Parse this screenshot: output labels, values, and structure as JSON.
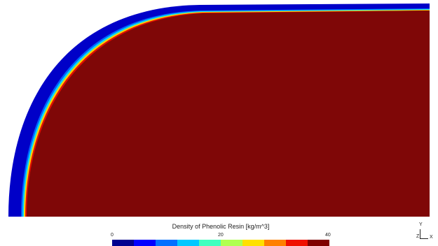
{
  "legend": {
    "title": "Density of Phenolic Resin [kg/m^3]",
    "ticks": [
      {
        "label": "0",
        "value": 0
      },
      {
        "label": "20",
        "value": 20
      },
      {
        "label": "40",
        "value": 40
      }
    ],
    "range": [
      0,
      40
    ],
    "colors": [
      "#00008f",
      "#0000ff",
      "#0070ff",
      "#00c8ff",
      "#40ffbf",
      "#b0ff50",
      "#ffe000",
      "#ff8000",
      "#f01000",
      "#800000"
    ]
  },
  "triad": {
    "y": "Y",
    "z": "Z",
    "x": "X"
  }
}
